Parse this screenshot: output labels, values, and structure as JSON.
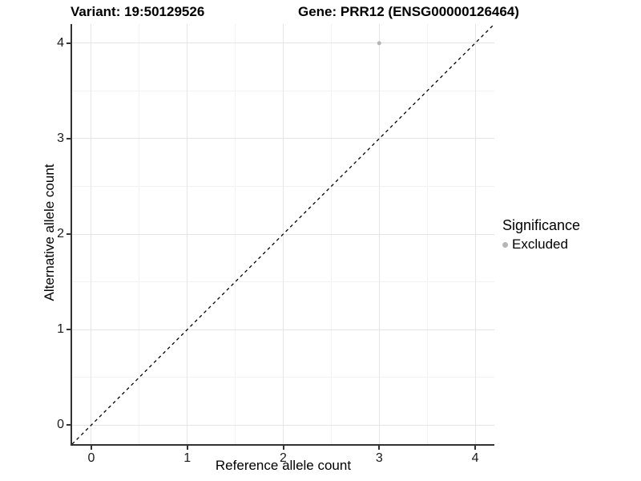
{
  "titles": {
    "variant": "Variant: 19:50129526",
    "gene": "Gene: PRR12 (ENSG00000126464)"
  },
  "axes": {
    "x_label": "Reference allele count",
    "y_label": "Alternative allele count"
  },
  "legend": {
    "title": "Significance",
    "items": [
      {
        "label": "Excluded",
        "color": "#b5b5b5"
      }
    ]
  },
  "chart_data": {
    "type": "scatter",
    "title": "Variant: 19:50129526 — Gene: PRR12 (ENSG00000126464)",
    "xlabel": "Reference allele count",
    "ylabel": "Alternative allele count",
    "xlim": [
      -0.2,
      4.2
    ],
    "ylim": [
      -0.2,
      4.2
    ],
    "x_ticks": [
      0,
      1,
      2,
      3,
      4
    ],
    "y_ticks": [
      0,
      1,
      2,
      3,
      4
    ],
    "x_minor_ticks": [
      0.5,
      1.5,
      2.5,
      3.5
    ],
    "y_minor_ticks": [
      0.5,
      1.5,
      2.5,
      3.5
    ],
    "grid": true,
    "legend_position": "right",
    "series": [
      {
        "name": "Excluded",
        "color": "#b5b5b5",
        "points": [
          {
            "x": 3,
            "y": 4
          }
        ]
      }
    ],
    "reference_line": {
      "type": "identity y=x",
      "style": "dashed",
      "color": "#000000"
    },
    "style": {
      "point_radius": 2.5,
      "grid_major_color": "#e5e5e5",
      "grid_minor_color": "#f2f2f2",
      "axis_color": "#333333",
      "background": "#ffffff"
    }
  }
}
